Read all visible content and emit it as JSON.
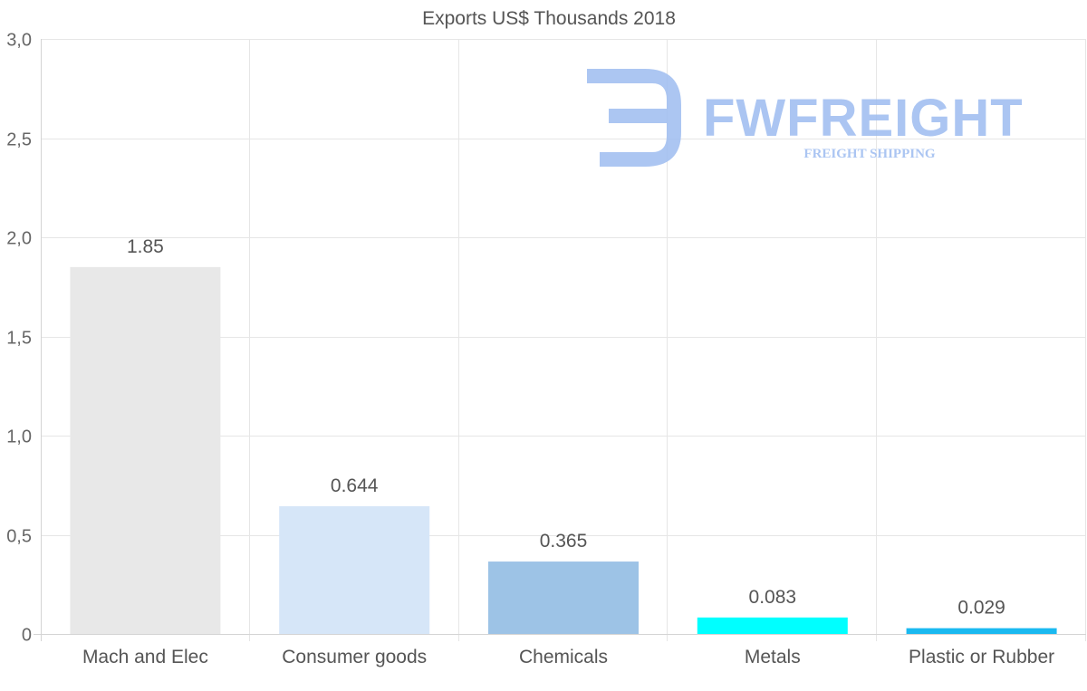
{
  "chart_data": {
    "type": "bar",
    "title": "Exports US$ Thousands 2018",
    "categories": [
      "Mach and Elec",
      "Consumer goods",
      "Chemicals",
      "Metals",
      "Plastic or Rubber"
    ],
    "values": [
      1.85,
      0.644,
      0.365,
      0.083,
      0.029
    ],
    "value_labels": [
      "1.85",
      "0.644",
      "0.365",
      "0.083",
      "0.029"
    ],
    "bar_colors": [
      "#e8e8e8",
      "#d6e6f8",
      "#9dc3e6",
      "#00ffff",
      "#1ab9f0"
    ],
    "ylim": [
      0,
      3.0
    ],
    "yticks": [
      0,
      0.5,
      1.0,
      1.5,
      2.0,
      2.5,
      3.0
    ],
    "ytick_labels": [
      "0",
      "0,5",
      "1,0",
      "1,5",
      "2,0",
      "2,5",
      "3,0"
    ],
    "xlabel": "",
    "ylabel": "",
    "grid": true,
    "legend": "none"
  },
  "watermark": {
    "brand": "FWFREIGHT",
    "tagline": "FREIGHT SHIPPING",
    "color": "#9dbcf0"
  }
}
